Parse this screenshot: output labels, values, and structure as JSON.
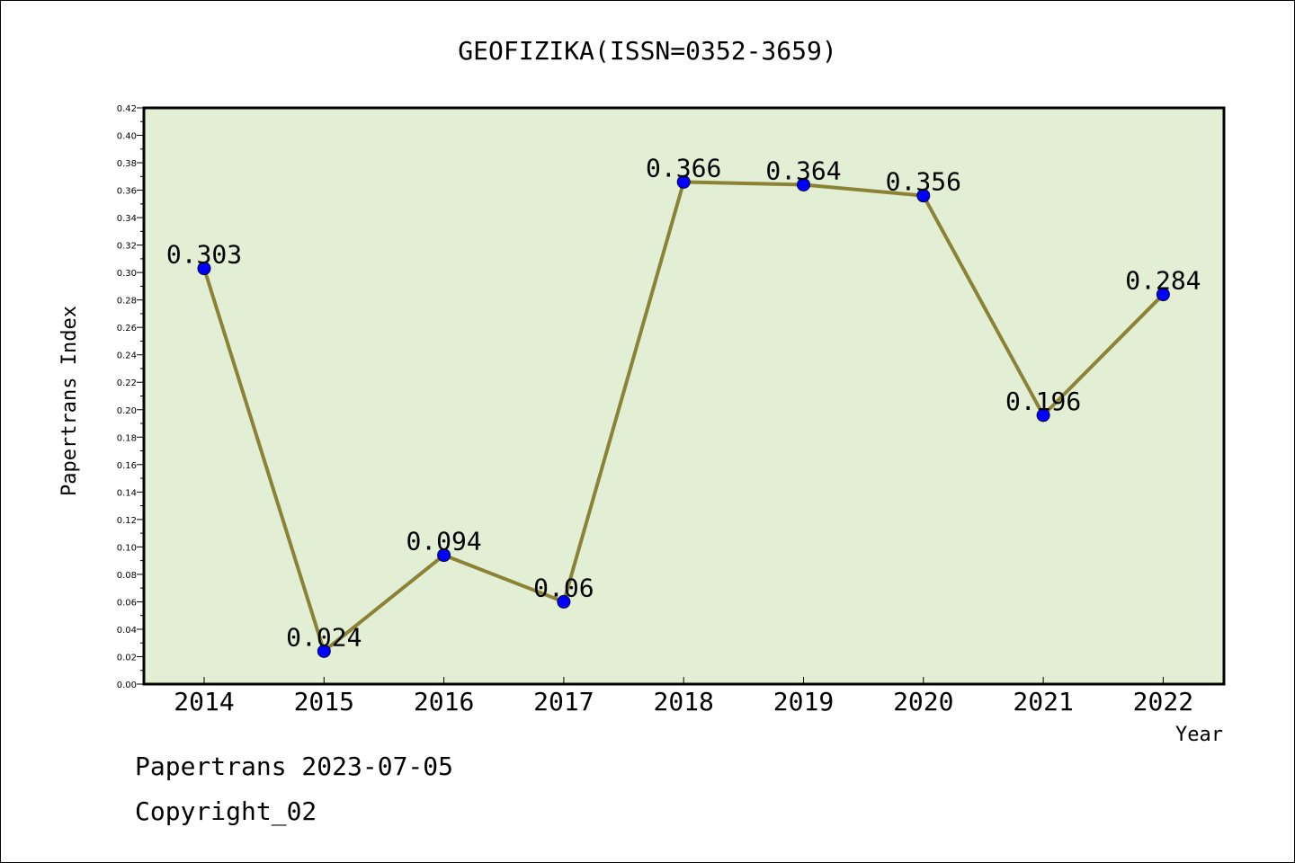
{
  "footer": {
    "line1": "Papertrans 2023-07-05",
    "line2": "Copyright_02"
  },
  "colors": {
    "plot_background": "#e2efd5",
    "line": "#8b8236",
    "marker": "#0000ff"
  },
  "chart_data": {
    "type": "line",
    "title": "GEOFIZIKA(ISSN=0352-3659)",
    "xlabel": "Year",
    "ylabel": "Papertrans Index",
    "categories": [
      "2014",
      "2015",
      "2016",
      "2017",
      "2018",
      "2019",
      "2020",
      "2021",
      "2022"
    ],
    "series": [
      {
        "values": [
          0.303,
          0.024,
          0.094,
          0.06,
          0.366,
          0.364,
          0.356,
          0.196,
          0.284
        ],
        "labels": [
          "0.303",
          "0.024",
          "0.094",
          "0.06",
          "0.366",
          "0.364",
          "0.356",
          "0.196",
          "0.284"
        ]
      }
    ],
    "ylim": [
      0,
      0.42
    ],
    "yticks": [
      "0.00",
      "0.02",
      "0.04",
      "0.06",
      "0.08",
      "0.10",
      "0.12",
      "0.14",
      "0.16",
      "0.18",
      "0.20",
      "0.22",
      "0.24",
      "0.26",
      "0.28",
      "0.30",
      "0.32",
      "0.34",
      "0.36",
      "0.38",
      "0.40",
      "0.42"
    ],
    "grid": false,
    "legend": false
  }
}
